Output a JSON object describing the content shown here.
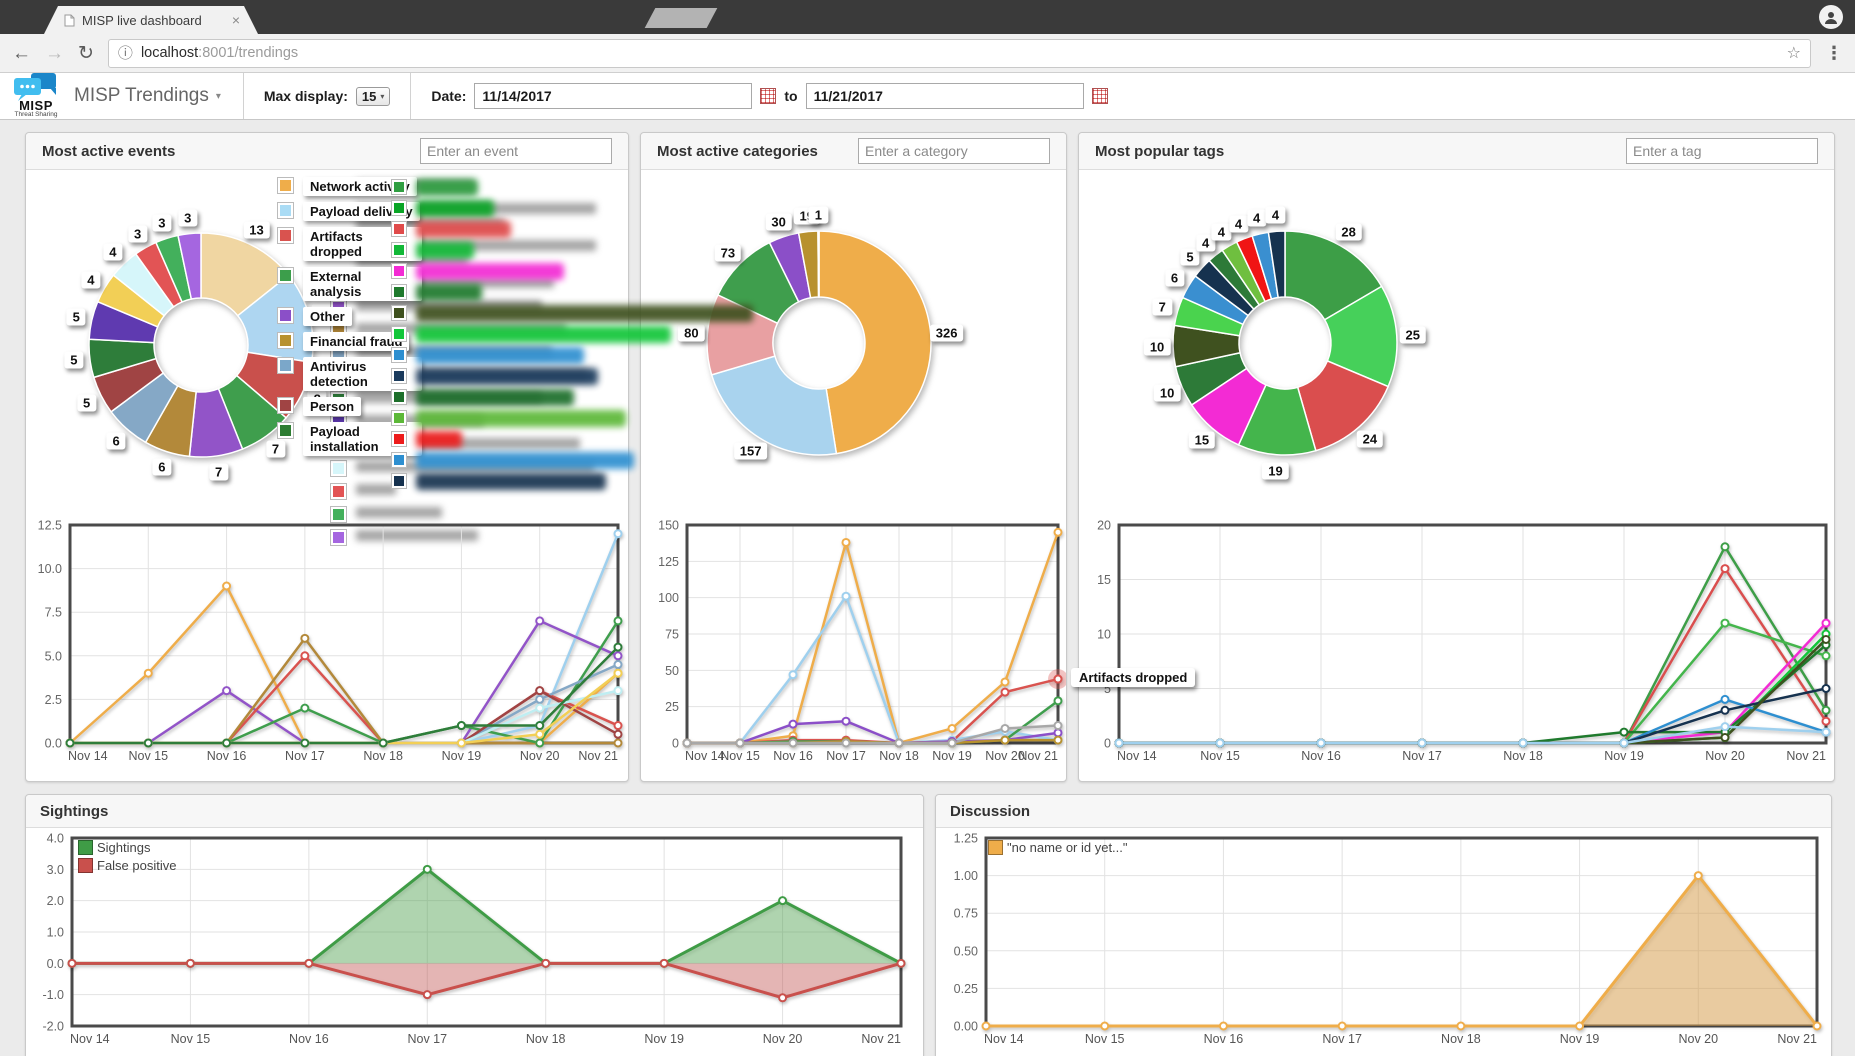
{
  "browser": {
    "tab_title": "MISP live dashboard",
    "close_glyph": "×",
    "back_glyph": "←",
    "forward_glyph": "→",
    "reload_glyph": "↻",
    "info_glyph": "ⓘ",
    "url_host": "localhost",
    "url_rest": ":8001/trendings",
    "star_glyph": "☆",
    "menu_glyph": "⋮"
  },
  "header": {
    "brand": "MISP",
    "brand_sub": "Threat Sharing",
    "nav_title": "MISP Trendings",
    "caret": "▾",
    "max_display_label": "Max display:",
    "max_display_value": "15",
    "date_label": "Date:",
    "date_from": "11/14/2017",
    "to_label": "to",
    "date_to": "11/21/2017"
  },
  "x_labels": [
    "Nov 14",
    "Nov 15",
    "Nov 16",
    "Nov 17",
    "Nov 18",
    "Nov 19",
    "Nov 20",
    "Nov 21"
  ],
  "panels": [
    {
      "title": "Most active events",
      "placeholder": "Enter an event",
      "donut": {
        "values": [
          13,
          12,
          8,
          7,
          7,
          6,
          6,
          5,
          5,
          5,
          4,
          4,
          3,
          3,
          3
        ],
        "colors": [
          "#f0d6a2",
          "#aed6f1",
          "#c9504c",
          "#3f9e4d",
          "#9254c8",
          "#b3893a",
          "#85a8c6",
          "#a04444",
          "#2e7d3a",
          "#5f3ab0",
          "#f2cf56",
          "#d6f6fa",
          "#e25455",
          "#43b05c",
          "#a566e0"
        ]
      },
      "legend": {
        "type": "blur",
        "colors": [
          "#efad4a",
          "#aed6f1",
          "#c9504c",
          "#3f9e4d",
          "#9254c8",
          "#b3893a",
          "#85a8c6",
          "#a04444",
          "#2e7d3a",
          "#5f3ab0",
          "#f2cf56",
          "#d6f6fa",
          "#e25455",
          "#43b05c",
          "#a566e0"
        ],
        "bars": [
          [
            118
          ],
          [
            240,
            148
          ],
          [
            240,
            112
          ],
          [
            198
          ],
          [
            186
          ],
          [
            210
          ],
          [
            196
          ],
          [
            232
          ],
          [
            186
          ],
          [
            128
          ],
          [
            224
          ],
          [
            238
          ],
          [
            40
          ],
          [
            86
          ],
          [
            122
          ]
        ]
      },
      "line": {
        "ymin": 0,
        "ymax": 12.5,
        "y_ticks": [
          {
            "v": 12.5,
            "t": "12.5"
          },
          {
            "v": 10,
            "t": "10.0"
          },
          {
            "v": 7.5,
            "t": "7.5"
          },
          {
            "v": 5,
            "t": "5.0"
          },
          {
            "v": 2.5,
            "t": "2.5"
          },
          {
            "v": 0,
            "t": "0.0"
          }
        ],
        "series": [
          {
            "color": "#efad4a",
            "values": [
              0,
              4,
              9,
              0,
              0,
              0,
              0,
              4
            ]
          },
          {
            "color": "#9fd0ee",
            "values": [
              0,
              0,
              0,
              0,
              0,
              0,
              1,
              12
            ]
          },
          {
            "color": "#9254c8",
            "values": [
              0,
              0,
              3,
              0,
              0,
              0,
              7,
              5
            ]
          },
          {
            "color": "#d9534f",
            "values": [
              0,
              0,
              0,
              5,
              0,
              0,
              3,
              1
            ]
          },
          {
            "color": "#b3893a",
            "values": [
              0,
              0,
              0,
              6,
              0,
              0,
              0,
              0
            ]
          },
          {
            "color": "#3f9e4d",
            "values": [
              0,
              0,
              0,
              2,
              0,
              1,
              0,
              7
            ]
          },
          {
            "color": "#85a8c6",
            "values": [
              0,
              0,
              0,
              0,
              0,
              0,
              2.5,
              4.5
            ]
          },
          {
            "color": "#a04444",
            "values": [
              0,
              0,
              0,
              0,
              0,
              0,
              3,
              0.5
            ]
          },
          {
            "color": "#bfeef2",
            "values": [
              0,
              0,
              0,
              0,
              0,
              0,
              2,
              3
            ]
          },
          {
            "color": "#f2cf56",
            "values": [
              0,
              0,
              0,
              0,
              0,
              0,
              0.5,
              4
            ]
          },
          {
            "color": "#2e7d3a",
            "values": [
              0,
              0,
              0,
              0,
              0,
              1,
              1,
              5.5
            ]
          }
        ]
      }
    },
    {
      "title": "Most active categories",
      "placeholder": "Enter a category",
      "donut": {
        "values": [
          326,
          157,
          80,
          73,
          30,
          19,
          1
        ],
        "colors": [
          "#efad4a",
          "#a9d3ee",
          "#e8a0a2",
          "#3f9e4d",
          "#8b4fc8",
          "#b8912e",
          "#9ec7e0"
        ]
      },
      "legend": {
        "type": "boxed",
        "items": [
          {
            "label": "Network activity",
            "color": "#efad4a"
          },
          {
            "label": "Payload delivery",
            "color": "#aadcf5"
          },
          {
            "label": "Artifacts dropped",
            "color": "#d9534f"
          },
          {
            "label": "External analysis",
            "color": "#3c9e4b"
          },
          {
            "label": "Other",
            "color": "#8b4fc8"
          },
          {
            "label": "Financial fraud",
            "color": "#b8912e"
          },
          {
            "label": "Antivirus detection",
            "color": "#7ba7c9"
          },
          {
            "label": "Person",
            "color": "#a04444"
          },
          {
            "label": "Payload installation",
            "color": "#2e7d32"
          }
        ]
      },
      "line": {
        "ymin": 0,
        "ymax": 150,
        "y_ticks": [
          {
            "v": 150,
            "t": "150"
          },
          {
            "v": 125,
            "t": "125"
          },
          {
            "v": 100,
            "t": "100"
          },
          {
            "v": 75,
            "t": "75"
          },
          {
            "v": 50,
            "t": "50"
          },
          {
            "v": 25,
            "t": "25"
          },
          {
            "v": 0,
            "t": "0"
          }
        ],
        "tooltip": {
          "text": "Artifacts dropped",
          "series": 2,
          "index": 7
        },
        "series": [
          {
            "color": "#efad4a",
            "values": [
              0,
              0,
              5,
              138,
              0,
              10,
              42,
              145
            ]
          },
          {
            "color": "#9fd0ee",
            "values": [
              0,
              0,
              47,
              101,
              0,
              2,
              8,
              2
            ]
          },
          {
            "color": "#d9534f",
            "values": [
              0,
              0,
              2,
              2,
              0,
              1,
              35,
              44
            ]
          },
          {
            "color": "#3f9e4d",
            "values": [
              0,
              0,
              1,
              1,
              0,
              0,
              2,
              29
            ]
          },
          {
            "color": "#8b4fc8",
            "values": [
              0,
              0,
              13,
              15,
              0,
              1,
              2,
              7
            ]
          },
          {
            "color": "#b8912e",
            "values": [
              0,
              0,
              0,
              1,
              0,
              0,
              2,
              2
            ]
          },
          {
            "color": "#a8a8a8",
            "values": [
              0,
              0,
              0,
              0,
              0,
              0,
              10,
              12
            ]
          }
        ]
      }
    },
    {
      "title": "Most popular tags",
      "placeholder": "Enter a tag",
      "donut": {
        "values": [
          28,
          25,
          24,
          19,
          15,
          10,
          10,
          7,
          6,
          5,
          4,
          4,
          4,
          4,
          4
        ],
        "colors": [
          "#3d9e47",
          "#46d05a",
          "#da4e4e",
          "#44b54c",
          "#f32bd4",
          "#2d7a38",
          "#3f511f",
          "#4ad34e",
          "#3a8fd0",
          "#16324f",
          "#2d7a38",
          "#6fbf3f",
          "#f01414",
          "#3a8fd0",
          "#16324f"
        ]
      },
      "legend": {
        "type": "pills",
        "colors": [
          "#2f9e41",
          "#0aa526",
          "#e04b4b",
          "#12b837",
          "#f32bd4",
          "#1f7a2d",
          "#3f511f",
          "#12c639",
          "#2e8fd0",
          "#1a3a5c",
          "#1c6e2a",
          "#5cb838",
          "#ed1c1c",
          "#2e8fd0",
          "#16324f"
        ],
        "widths": [
          62,
          78,
          95,
          58,
          148,
          66,
          345,
          255,
          168,
          182,
          158,
          210,
          46,
          218,
          190
        ]
      },
      "line": {
        "ymin": 0,
        "ymax": 20,
        "y_ticks": [
          {
            "v": 20,
            "t": "20"
          },
          {
            "v": 15,
            "t": "15"
          },
          {
            "v": 10,
            "t": "10"
          },
          {
            "v": 5,
            "t": "5"
          },
          {
            "v": 0,
            "t": "0"
          }
        ],
        "series": [
          {
            "color": "#3d9e47",
            "values": [
              0,
              0,
              0,
              0,
              0,
              0,
              18,
              3
            ]
          },
          {
            "color": "#da4e4e",
            "values": [
              0,
              0,
              0,
              0,
              0,
              0,
              16,
              2
            ]
          },
          {
            "color": "#44b54c",
            "values": [
              0,
              0,
              0,
              0,
              0,
              0,
              11,
              8
            ]
          },
          {
            "color": "#f32bd4",
            "values": [
              0,
              0,
              0,
              0,
              0,
              0,
              1,
              11
            ]
          },
          {
            "color": "#12c639",
            "values": [
              0,
              0,
              0,
              0,
              0,
              0,
              0.5,
              10
            ]
          },
          {
            "color": "#1f7a2d",
            "values": [
              0,
              0,
              0,
              0,
              0,
              1,
              1,
              9
            ]
          },
          {
            "color": "#2e8fd0",
            "values": [
              0,
              0,
              0,
              0,
              0,
              0,
              4,
              1
            ]
          },
          {
            "color": "#16324f",
            "values": [
              0,
              0,
              0,
              0,
              0,
              0,
              3,
              5
            ]
          },
          {
            "color": "#3f511f",
            "values": [
              0,
              0,
              0,
              0,
              0,
              0,
              0.5,
              9.5
            ]
          },
          {
            "color": "#9fd0ee",
            "values": [
              0,
              0,
              0,
              0,
              0,
              0,
              1.5,
              1
            ]
          }
        ]
      }
    }
  ],
  "sightings": {
    "title": "Sightings",
    "legend": [
      {
        "label": "Sightings",
        "color": "#3f9c46"
      },
      {
        "label": "False positive",
        "color": "#c9504c"
      }
    ],
    "line": {
      "ymin": -2,
      "ymax": 4,
      "y_ticks": [
        {
          "v": 4,
          "t": "4.0"
        },
        {
          "v": 3,
          "t": "3.0"
        },
        {
          "v": 2,
          "t": "2.0"
        },
        {
          "v": 1,
          "t": "1.0"
        },
        {
          "v": 0,
          "t": "0.0"
        },
        {
          "v": -1,
          "t": "-1.0"
        },
        {
          "v": -2,
          "t": "-2.0"
        }
      ],
      "series": [
        {
          "color": "#3f9c46",
          "fill": "rgba(92,184,92,0.4)",
          "values": [
            0,
            0,
            0,
            3,
            0,
            0,
            2,
            0
          ]
        },
        {
          "color": "#c9504c",
          "fill": "rgba(217,83,79,0.35)",
          "values": [
            0,
            0,
            0,
            -1,
            0,
            0,
            -1.1,
            0
          ]
        }
      ]
    }
  },
  "discussion": {
    "title": "Discussion",
    "legend": [
      {
        "label": "\"no name or id yet...\"",
        "color": "#efad4a"
      }
    ],
    "line": {
      "ymin": 0,
      "ymax": 1.25,
      "y_ticks": [
        {
          "v": 1.25,
          "t": "1.25"
        },
        {
          "v": 1,
          "t": "1.00"
        },
        {
          "v": 0.75,
          "t": "0.75"
        },
        {
          "v": 0.5,
          "t": "0.50"
        },
        {
          "v": 0.25,
          "t": "0.25"
        },
        {
          "v": 0,
          "t": "0.00"
        }
      ],
      "series": [
        {
          "color": "#efad4a",
          "fill": "rgba(240,173,78,0.45)",
          "values": [
            0,
            0,
            0,
            0,
            0,
            0,
            1,
            0
          ]
        }
      ]
    }
  }
}
